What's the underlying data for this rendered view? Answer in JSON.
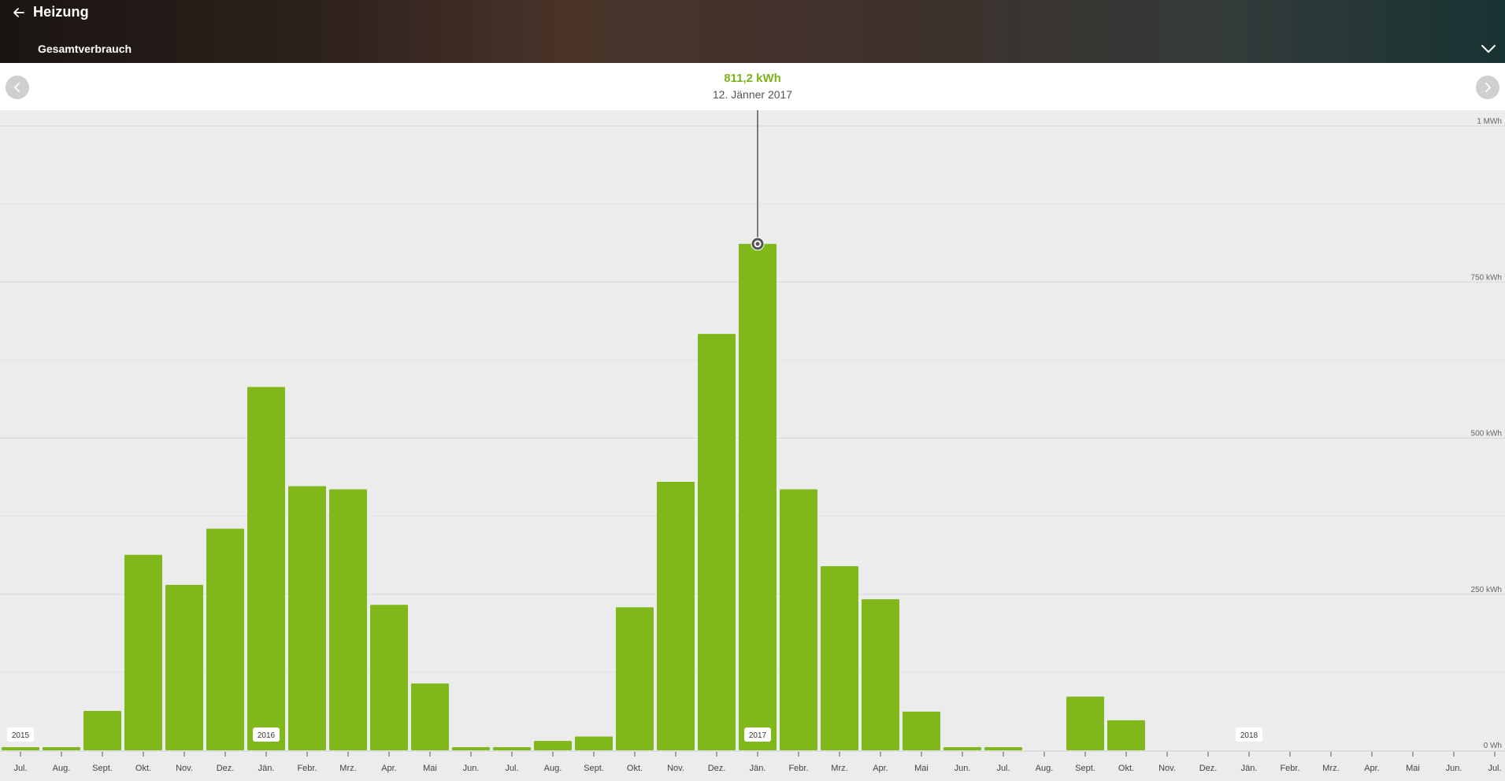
{
  "header": {
    "title": "Heizung",
    "view_label": "Gesamtverbrauch"
  },
  "icons": {
    "back": "arrow-left-icon",
    "dropdown": "chevron-down-icon",
    "prev": "chevron-left-icon",
    "next": "chevron-right-icon",
    "marker": "selection-marker-icon"
  },
  "selection": {
    "value": "811,2 kWh",
    "date": "12. Jänner 2017",
    "index": 18
  },
  "colors": {
    "bar": "#80b71b",
    "value_text": "#7bb31a"
  },
  "chart_data": {
    "type": "bar",
    "unit": "kWh",
    "ylim": [
      0,
      1000
    ],
    "y_ticks": [
      {
        "value": 1000,
        "label": "1  MWh"
      },
      {
        "value": 750,
        "label": "750  kWh"
      },
      {
        "value": 500,
        "label": "500  kWh"
      },
      {
        "value": 250,
        "label": "250  kWh"
      },
      {
        "value": 0,
        "label": "0  Wh"
      }
    ],
    "grid": true,
    "categories": [
      "Jul.",
      "Aug.",
      "Sept.",
      "Okt.",
      "Nov.",
      "Dez.",
      "Jän.",
      "Febr.",
      "Mrz.",
      "Apr.",
      "Mai",
      "Jun.",
      "Jul.",
      "Aug.",
      "Sept.",
      "Okt.",
      "Nov.",
      "Dez.",
      "Jän.",
      "Febr.",
      "Mrz.",
      "Apr.",
      "Mai",
      "Jun.",
      "Jul.",
      "Aug.",
      "Sept.",
      "Okt.",
      "Nov.",
      "Dez.",
      "Jän.",
      "Febr.",
      "Mrz.",
      "Apr.",
      "Mai",
      "Jun.",
      "Jul."
    ],
    "values": [
      5,
      5,
      63,
      313,
      265,
      355,
      582,
      423,
      418,
      233,
      107,
      5,
      5,
      15,
      22,
      229,
      430,
      667,
      811.2,
      418,
      295,
      242,
      62,
      5,
      5,
      0,
      86,
      48,
      0,
      0,
      0,
      0,
      0,
      0,
      0,
      0,
      0
    ],
    "year_markers": [
      {
        "index": 0,
        "label": "2015"
      },
      {
        "index": 6,
        "label": "2016"
      },
      {
        "index": 18,
        "label": "2017"
      },
      {
        "index": 30,
        "label": "2018"
      }
    ]
  }
}
